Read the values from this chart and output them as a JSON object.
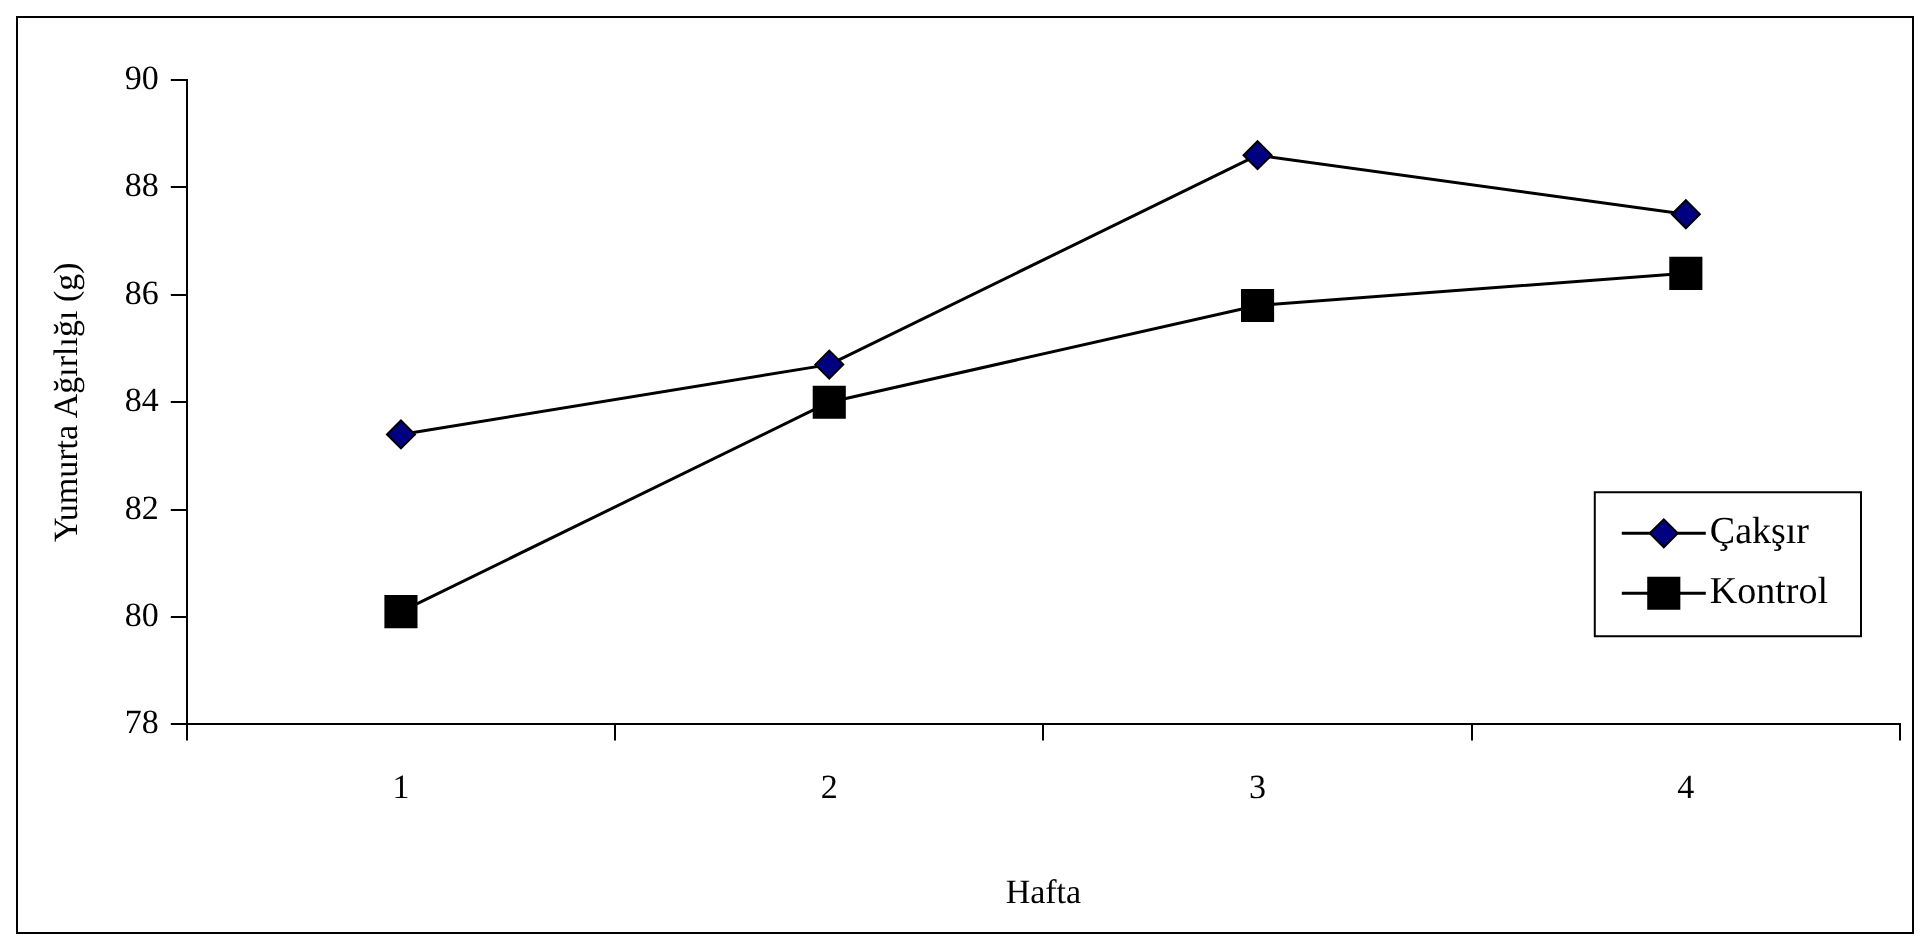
{
  "chart_data": {
    "type": "line",
    "xlabel": "Hafta",
    "ylabel": "Yumurta Ağırlığı (g)",
    "categories": [
      "1",
      "2",
      "3",
      "4"
    ],
    "series": [
      {
        "name": "Çakşır",
        "color": "#000080",
        "marker": "diamond",
        "values": [
          83.4,
          84.7,
          88.6,
          87.5
        ]
      },
      {
        "name": "Kontrol",
        "color": "#000000",
        "marker": "square",
        "values": [
          80.1,
          84.0,
          85.8,
          86.4
        ]
      }
    ],
    "ylim": [
      78,
      90
    ],
    "yticks": [
      78,
      80,
      82,
      84,
      86,
      88,
      90
    ],
    "grid": false,
    "legend": "right",
    "line_style": "solid"
  }
}
